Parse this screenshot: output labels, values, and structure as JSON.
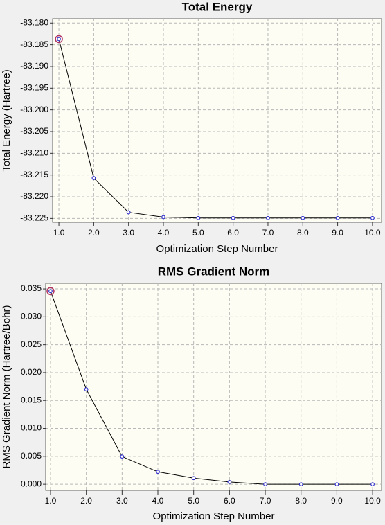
{
  "chart_data": [
    {
      "type": "line",
      "title": "Total Energy",
      "x_label": "Optimization Step Number",
      "y_label": "Total Energy (Hartree)",
      "x": [
        1,
        2,
        3,
        4,
        5,
        6,
        7,
        8,
        9,
        10
      ],
      "series": [
        {
          "name": "Total Energy",
          "color": "#000000",
          "marker_color": "#3333cc",
          "values": [
            -83.1837,
            -83.2157,
            -83.2236,
            -83.2247,
            -83.2249,
            -83.2249,
            -83.2249,
            -83.2249,
            -83.2249,
            -83.2249
          ]
        }
      ],
      "highlight_point": 0,
      "highlight_color": "#b03060",
      "xlim": [
        0.82,
        10.26
      ],
      "ylim": [
        -83.2259,
        -83.179
      ],
      "xticks": [
        {
          "value": 1,
          "label": "1.0"
        },
        {
          "value": 2,
          "label": "2.0"
        },
        {
          "value": 3,
          "label": "3.0"
        },
        {
          "value": 4,
          "label": "4.0"
        },
        {
          "value": 5,
          "label": "5.0"
        },
        {
          "value": 6,
          "label": "6.0"
        },
        {
          "value": 7,
          "label": "7.0"
        },
        {
          "value": 8,
          "label": "8.0"
        },
        {
          "value": 9,
          "label": "9.0"
        },
        {
          "value": 10,
          "label": "10.0"
        }
      ],
      "yticks": [
        {
          "value": -83.18,
          "label": "-83.180"
        },
        {
          "value": -83.185,
          "label": "-83.185"
        },
        {
          "value": -83.19,
          "label": "-83.190"
        },
        {
          "value": -83.195,
          "label": "-83.195"
        },
        {
          "value": -83.2,
          "label": "-83.200"
        },
        {
          "value": -83.205,
          "label": "-83.205"
        },
        {
          "value": -83.21,
          "label": "-83.210"
        },
        {
          "value": -83.215,
          "label": "-83.215"
        },
        {
          "value": -83.22,
          "label": "-83.220"
        },
        {
          "value": -83.225,
          "label": "-83.225"
        }
      ],
      "grid": true
    },
    {
      "type": "line",
      "title": "RMS Gradient Norm",
      "x_label": "Optimization Step Number",
      "y_label": "RMS Gradient Norm (Hartree/Bohr)",
      "x": [
        1,
        2,
        3,
        4,
        5,
        6,
        7,
        8,
        9,
        10
      ],
      "series": [
        {
          "name": "RMS Gradient Norm",
          "color": "#000000",
          "marker_color": "#3333cc",
          "values": [
            0.0346,
            0.017,
            0.00496,
            0.00223,
            0.0011,
            0.0004,
            0.0,
            0.0,
            0.0,
            0.0
          ]
        }
      ],
      "highlight_point": 0,
      "highlight_color": "#b03060",
      "xlim": [
        0.865,
        10.25
      ],
      "ylim": [
        -0.0011,
        0.036
      ],
      "xticks": [
        {
          "value": 1,
          "label": "1.0"
        },
        {
          "value": 2,
          "label": "2.0"
        },
        {
          "value": 3,
          "label": "3.0"
        },
        {
          "value": 4,
          "label": "4.0"
        },
        {
          "value": 5,
          "label": "5.0"
        },
        {
          "value": 6,
          "label": "6.0"
        },
        {
          "value": 7,
          "label": "7.0"
        },
        {
          "value": 8,
          "label": "8.0"
        },
        {
          "value": 9,
          "label": "9.0"
        },
        {
          "value": 10,
          "label": "10.0"
        }
      ],
      "yticks": [
        {
          "value": 0,
          "label": "0.000"
        },
        {
          "value": 0.005,
          "label": "0.005"
        },
        {
          "value": 0.01,
          "label": "0.010"
        },
        {
          "value": 0.015,
          "label": "0.015"
        },
        {
          "value": 0.02,
          "label": "0.020"
        },
        {
          "value": 0.025,
          "label": "0.025"
        },
        {
          "value": 0.03,
          "label": "0.030"
        },
        {
          "value": 0.035,
          "label": "0.035"
        }
      ],
      "grid": true
    }
  ]
}
